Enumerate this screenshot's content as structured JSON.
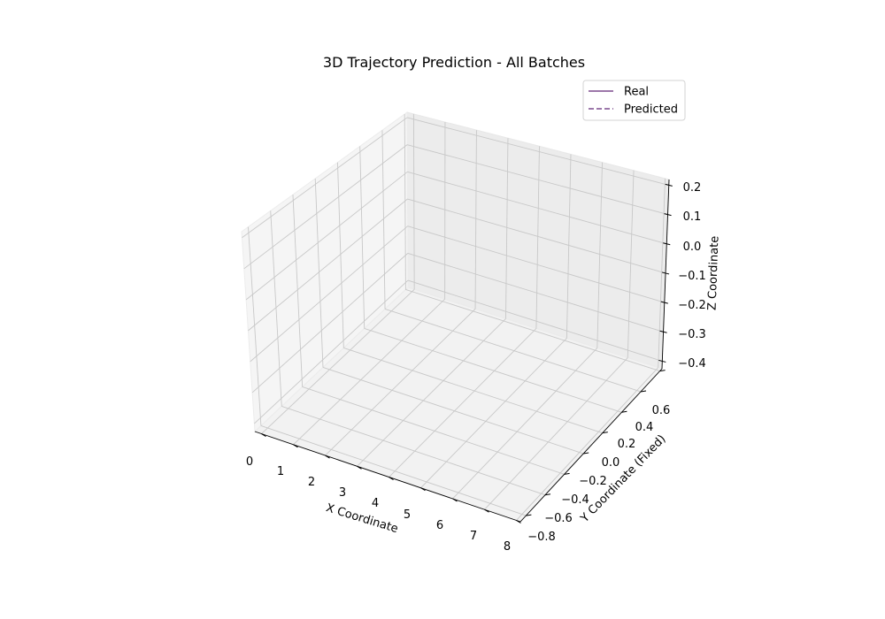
{
  "chart_data": {
    "type": "line",
    "projection": "3d",
    "title": "3D Trajectory Prediction - All Batches",
    "xlabel": "X Coordinate",
    "ylabel": "Y Coordinate (Fixed)",
    "zlabel": "Z Coordinate",
    "x_ticks": [
      "0",
      "1",
      "2",
      "3",
      "4",
      "5",
      "6",
      "7",
      "8"
    ],
    "y_ticks": [
      "−0.8",
      "−0.6",
      "−0.4",
      "−0.2",
      "0.0",
      "0.2",
      "0.4",
      "0.6"
    ],
    "z_ticks": [
      "−0.4",
      "−0.3",
      "−0.2",
      "−0.1",
      "0.0",
      "0.1",
      "0.2"
    ],
    "xlim": [
      0,
      8
    ],
    "ylim": [
      -0.8,
      0.6
    ],
    "zlim": [
      -0.4,
      0.2
    ],
    "grid": true,
    "legend_position": "top-right",
    "series": [
      {
        "name": "Real",
        "style": "solid",
        "color": "#7b4a8e",
        "points": []
      },
      {
        "name": "Predicted",
        "style": "dashed",
        "color": "#7b4a8e",
        "points": []
      }
    ]
  }
}
